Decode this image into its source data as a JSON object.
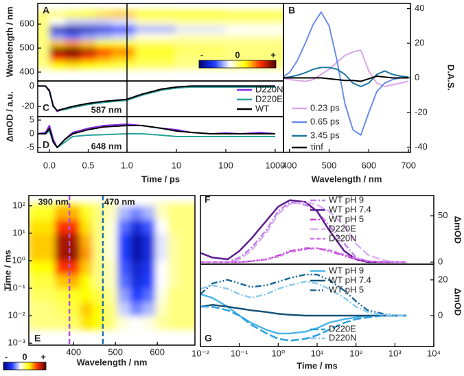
{
  "chart_data": [
    {
      "panel": "A",
      "type": "heatmap",
      "xscale": "split",
      "xsplit": 1,
      "xlim": [
        -0.15,
        1470
      ],
      "ylim": [
        363,
        686
      ],
      "yticks": [
        400,
        500,
        600
      ],
      "ylabel": "Wavelength / nm",
      "x": [
        -0.1,
        0.1,
        0.3,
        0.5,
        0.7,
        0.9,
        3,
        30,
        300,
        1000
      ],
      "y": [
        400,
        430,
        460,
        490,
        520,
        550,
        580,
        610,
        640,
        670
      ],
      "z": [
        [
          0,
          0.05,
          0.05,
          0.05,
          0.05,
          0.03,
          0,
          0,
          0,
          0
        ],
        [
          0,
          0.2,
          0.25,
          0.2,
          0.15,
          0.1,
          0.05,
          0,
          0,
          0
        ],
        [
          0,
          0.6,
          0.7,
          0.55,
          0.4,
          0.3,
          0.1,
          0,
          0,
          0
        ],
        [
          0,
          0.9,
          1,
          0.8,
          0.6,
          0.45,
          0.15,
          0.05,
          0,
          0
        ],
        [
          0,
          0.3,
          0.4,
          0.3,
          0.2,
          0.15,
          0.05,
          0,
          0,
          0
        ],
        [
          0,
          -0.4,
          -0.5,
          -0.4,
          -0.35,
          -0.3,
          -0.15,
          -0.1,
          -0.1,
          -0.1
        ],
        [
          0,
          -0.8,
          -0.9,
          -0.8,
          -0.7,
          -0.6,
          -0.35,
          -0.25,
          -0.2,
          -0.2
        ],
        [
          0,
          -0.2,
          -0.3,
          -0.3,
          -0.3,
          -0.25,
          -0.1,
          -0.05,
          -0.05,
          -0.05
        ],
        [
          0,
          0.1,
          0.2,
          0.3,
          0.35,
          0.35,
          0.25,
          0.2,
          0.15,
          0.15
        ],
        [
          0,
          0,
          0.1,
          0.2,
          0.25,
          0.3,
          0.2,
          0.15,
          0.1,
          0.1
        ]
      ],
      "zlim": [
        -1,
        1
      ],
      "colormap": [
        "#000078",
        "#1e3cff",
        "#ffffff",
        "#ffff00",
        "#ff3000",
        "#500000"
      ],
      "colorbar_labels": [
        "-",
        "0",
        "+"
      ]
    },
    {
      "panel": "B",
      "type": "line",
      "xlim": [
        385,
        705
      ],
      "ylim": [
        -43,
        43
      ],
      "xticks": [
        400,
        500,
        600,
        700
      ],
      "yticks": [
        -40,
        -20,
        0,
        20,
        40
      ],
      "xlabel": "Wavelength / nm",
      "ylabel": "D.A.S.",
      "y_side": "right",
      "legend": "lower left",
      "x": [
        380,
        400,
        420,
        440,
        460,
        480,
        500,
        520,
        540,
        560,
        580,
        600,
        620,
        640,
        660,
        680,
        700
      ],
      "series": [
        {
          "name": "0.23 ps",
          "color": "#d9a6ea",
          "style": "solid",
          "values": [
            0,
            -1,
            -1.5,
            -2,
            -1,
            2,
            5,
            9,
            13,
            15,
            16,
            4,
            -3,
            -5,
            -4,
            -3,
            -2
          ]
        },
        {
          "name": "0.65 ps",
          "color": "#6a8cea",
          "style": "solid",
          "values": [
            0,
            3,
            10,
            20,
            31,
            38,
            30,
            10,
            -15,
            -30,
            -33,
            -20,
            -8,
            -3,
            -1,
            0,
            0
          ]
        },
        {
          "name": "3.45 ps",
          "color": "#1b75a0",
          "style": "solid",
          "values": [
            0,
            0.5,
            1.5,
            3,
            5,
            6,
            6,
            5,
            2,
            -3,
            -5,
            -3,
            2,
            4,
            2,
            1,
            0.5
          ]
        },
        {
          "name": "τinf",
          "color": "#000000",
          "style": "solid",
          "values": [
            0,
            0,
            0,
            0,
            0,
            0,
            -0.5,
            -1,
            -1.5,
            -1.5,
            -2,
            -0.5,
            1,
            0.5,
            0,
            0,
            0
          ]
        }
      ]
    },
    {
      "panel": "C",
      "type": "line",
      "xscale": "split",
      "xsplit": 1,
      "xlim": [
        -0.15,
        1470
      ],
      "ylim": [
        -30,
        5
      ],
      "yticks": [
        -20,
        0
      ],
      "legend": "right",
      "annotation": "587 nm",
      "x": [
        -0.15,
        -0.05,
        0,
        0.05,
        0.1,
        0.2,
        0.3,
        0.5,
        0.7,
        1,
        2,
        5,
        10,
        20,
        50,
        100,
        200,
        500,
        1000
      ],
      "series": [
        {
          "name": "D220N",
          "color": "#8a2be2",
          "style": "solid",
          "values": [
            0,
            0,
            -4,
            -19,
            -25,
            -22,
            -20,
            -17,
            -15,
            -13,
            -8,
            -3,
            -1,
            0,
            0,
            0,
            0,
            0,
            0
          ]
        },
        {
          "name": "D220E",
          "color": "#2aa198",
          "style": "solid",
          "values": [
            0,
            0,
            -5,
            -20,
            -24,
            -23,
            -21,
            -18,
            -16,
            -14,
            -9,
            -4,
            -2,
            -1,
            -1,
            -1,
            -1,
            -1,
            -1
          ]
        },
        {
          "name": "WT",
          "color": "#000000",
          "style": "solid",
          "values": [
            0,
            0,
            -5,
            -20,
            -24,
            -22,
            -20,
            -17,
            -15,
            -13,
            -8,
            -3,
            -1,
            0,
            0,
            0,
            0,
            0,
            0
          ]
        }
      ]
    },
    {
      "panel": "D",
      "type": "line",
      "xscale": "split",
      "xsplit": 1,
      "xlim": [
        -0.15,
        1470
      ],
      "ylim": [
        -6.75,
        6.25
      ],
      "yticks": [
        -5,
        0,
        5
      ],
      "annotation": "648 nm",
      "xticks": [
        {
          "value": 0,
          "label": "0.0"
        },
        {
          "value": 0.5,
          "label": "0.5"
        },
        {
          "value": 1,
          "label": "1.0"
        },
        10,
        100,
        1000
      ],
      "xlabel": "Time / ps",
      "ylabel": "ΔmOD / a.u.",
      "x": [
        -0.15,
        -0.05,
        0,
        0.05,
        0.1,
        0.2,
        0.3,
        0.5,
        0.7,
        1,
        2,
        5,
        10,
        20,
        50,
        100,
        200,
        500,
        1000
      ],
      "series": [
        {
          "color": "#8a2be2",
          "style": "solid",
          "values": [
            0,
            0.5,
            3,
            -2,
            -5,
            -2,
            0.5,
            2,
            3,
            3.5,
            3,
            2,
            1.5,
            0.5,
            0,
            0.3,
            0,
            0.5,
            0
          ]
        },
        {
          "color": "#2aa198",
          "style": "solid",
          "values": [
            0,
            0,
            1,
            -3,
            -5,
            -3,
            -1,
            -0.5,
            -0.3,
            0,
            0,
            -0.5,
            -1,
            -1,
            -1,
            -1,
            -1,
            -1,
            -1
          ]
        },
        {
          "color": "#000000",
          "style": "solid",
          "values": [
            0,
            0,
            2,
            -3,
            -5,
            -2,
            0,
            1.5,
            2.5,
            3,
            3,
            2,
            1,
            0.5,
            0,
            0,
            0,
            0,
            0
          ]
        }
      ]
    },
    {
      "panel": "E",
      "type": "heatmap",
      "yscale": "log",
      "xlim": [
        293,
        690
      ],
      "ylim": [
        0.00085,
        235
      ],
      "xticks": [
        400,
        500,
        600
      ],
      "yticks": [
        {
          "value": 0.001,
          "label": "10⁻³"
        },
        {
          "value": 0.01,
          "label": "10⁻²"
        },
        {
          "value": 0.1,
          "label": "10⁻¹"
        },
        {
          "value": 1,
          "label": "10⁰"
        },
        {
          "value": 10,
          "label": "10¹"
        },
        {
          "value": 100,
          "label": "10²"
        }
      ],
      "xlabel": "Wavelength / nm",
      "ylabel": "Time / ms",
      "markers": [
        {
          "value": 390,
          "label": "390 nm",
          "color": "#b050e0"
        },
        {
          "value": 470,
          "label": "470 nm",
          "color": "#1a70b0"
        }
      ],
      "x": [
        340,
        370,
        400,
        430,
        460,
        490,
        520,
        550,
        580,
        610,
        640,
        670
      ],
      "y": [
        0.002,
        0.005,
        0.02,
        0.05,
        0.2,
        0.5,
        2,
        5,
        20,
        50,
        200
      ],
      "z": [
        [
          0,
          0,
          0,
          0.05,
          0.05,
          0,
          -0.1,
          -0.1,
          -0.1,
          0,
          0,
          0
        ],
        [
          0,
          0,
          0.05,
          0.25,
          0.2,
          0,
          -0.15,
          -0.2,
          -0.15,
          -0.05,
          0,
          0
        ],
        [
          0,
          0.05,
          0.1,
          0.3,
          0.2,
          0,
          -0.3,
          -0.45,
          -0.35,
          -0.1,
          0,
          0
        ],
        [
          0.05,
          0.1,
          0.15,
          0.2,
          0.1,
          -0.05,
          -0.4,
          -0.6,
          -0.5,
          -0.15,
          0,
          0
        ],
        [
          0.1,
          0.3,
          0.35,
          0.2,
          0,
          -0.1,
          -0.5,
          -0.7,
          -0.6,
          -0.2,
          -0.05,
          0
        ],
        [
          0.2,
          0.6,
          0.6,
          0.3,
          0,
          -0.1,
          -0.55,
          -0.75,
          -0.65,
          -0.2,
          -0.05,
          0
        ],
        [
          0.3,
          0.8,
          0.85,
          0.4,
          0,
          -0.15,
          -0.6,
          -0.85,
          -0.7,
          -0.25,
          -0.05,
          0
        ],
        [
          0.3,
          0.8,
          0.8,
          0.35,
          0,
          -0.15,
          -0.6,
          -0.85,
          -0.7,
          -0.25,
          -0.05,
          0
        ],
        [
          0.25,
          0.6,
          0.6,
          0.25,
          0,
          -0.15,
          -0.5,
          -0.7,
          -0.55,
          -0.2,
          0,
          0
        ],
        [
          0.15,
          0.35,
          0.35,
          0.15,
          0,
          -0.1,
          -0.35,
          -0.45,
          -0.35,
          -0.1,
          0,
          0
        ],
        [
          0.05,
          0.15,
          0.15,
          0.05,
          0,
          -0.05,
          -0.15,
          -0.2,
          -0.15,
          -0.05,
          0,
          0
        ]
      ],
      "zlim": [
        -1,
        1
      ],
      "colormap": [
        "#000078",
        "#1e3cff",
        "#ffffff",
        "#ffff00",
        "#ff3000",
        "#500000"
      ],
      "colorbar_labels": [
        "-",
        "0",
        "+"
      ]
    },
    {
      "panel": "F",
      "type": "line",
      "xscale": "log",
      "xlim": [
        0.01,
        10000
      ],
      "ylim": [
        -2.2,
        72
      ],
      "yticks": [
        0,
        50
      ],
      "ylabel": "ΔmOD",
      "y_side": "right",
      "legend": "right",
      "x": [
        0.01,
        0.02,
        0.05,
        0.1,
        0.2,
        0.5,
        1,
        2,
        5,
        10,
        20,
        50,
        100,
        200,
        500,
        1000,
        2000
      ],
      "series": [
        {
          "name": "WT pH 9",
          "color": "#c080ec",
          "style": "dashdot",
          "values": [
            0,
            0,
            0,
            5,
            15,
            35,
            55,
            65,
            62,
            55,
            40,
            20,
            5,
            1,
            0,
            0,
            0
          ]
        },
        {
          "name": "WT pH 7.4",
          "color": "#5b1c8f",
          "style": "solid",
          "values": [
            10,
            5,
            3,
            12,
            25,
            45,
            60,
            67,
            65,
            55,
            35,
            12,
            3,
            0,
            0,
            0,
            0
          ]
        },
        {
          "name": "WT pH 5",
          "color": "#c23fd0",
          "style": "dashdotdot",
          "values": [
            0,
            0,
            0,
            0,
            1,
            3,
            7,
            12,
            15,
            15,
            12,
            7,
            3,
            1,
            0,
            0,
            0
          ]
        },
        {
          "name": "D220E",
          "color": "#dcb0f2",
          "style": "longdash",
          "values": [
            0,
            0,
            0,
            3,
            12,
            32,
            52,
            63,
            65,
            62,
            55,
            40,
            20,
            8,
            2,
            0,
            0
          ]
        },
        {
          "name": "D220N",
          "color": "#d070e8",
          "style": "dash",
          "values": [
            0,
            0,
            0,
            0,
            1,
            3,
            6,
            11,
            14,
            15,
            13,
            8,
            4,
            1,
            0,
            0,
            0
          ]
        }
      ]
    },
    {
      "panel": "G",
      "type": "line",
      "xscale": "log",
      "xlim": [
        0.01,
        10000
      ],
      "ylim": [
        -17.3,
        28.8
      ],
      "yticks": [
        0,
        20
      ],
      "xticks": [
        {
          "value": 0.01,
          "label": "10⁻²"
        },
        {
          "value": 0.1,
          "label": "10⁻¹"
        },
        {
          "value": 1,
          "label": "10⁰"
        },
        {
          "value": 10,
          "label": "10¹"
        },
        {
          "value": 100,
          "label": "10²"
        },
        {
          "value": 1000,
          "label": "10³"
        },
        {
          "value": 10000,
          "label": "10⁴"
        }
      ],
      "xlabel": "Time / ms",
      "ylabel": "ΔmOD",
      "y_side": "right",
      "legend": "right",
      "x": [
        0.01,
        0.02,
        0.05,
        0.1,
        0.2,
        0.5,
        1,
        2,
        5,
        10,
        20,
        50,
        100,
        200,
        500,
        1000,
        2000
      ],
      "series": [
        {
          "name": "WT pH 9",
          "color": "#4fb4ea",
          "style": "solid",
          "values": [
            12,
            10,
            5,
            0,
            -4,
            -8,
            -10,
            -10,
            -9,
            -7,
            -4,
            -2,
            -1,
            0,
            0,
            0,
            0
          ]
        },
        {
          "name": "WT pH 7.4",
          "color": "#175377",
          "style": "solid",
          "values": [
            5,
            6,
            5,
            4,
            3,
            2,
            1,
            0.5,
            0,
            0,
            0,
            0,
            0,
            0,
            0,
            0,
            0
          ]
        },
        {
          "name": "WT pH 5",
          "color": "#1d6a9a",
          "style": "dashdotdot",
          "values": [
            12,
            18,
            20,
            18,
            16,
            17,
            19,
            21,
            23,
            23,
            20,
            14,
            8,
            3,
            1,
            0,
            0
          ]
        },
        {
          "name": "D220E",
          "color": "#2aa0e0",
          "style": "longdash",
          "values": [
            5,
            5,
            3,
            0,
            -5,
            -10,
            -13,
            -14,
            -13,
            -11,
            -8,
            -4,
            -2,
            -1,
            0,
            0,
            0
          ]
        },
        {
          "name": "D220N",
          "color": "#8ccbf0",
          "style": "dashdot",
          "values": [
            15,
            17,
            15,
            12,
            10,
            12,
            15,
            17,
            19,
            18,
            15,
            10,
            5,
            2,
            0.5,
            0,
            0
          ]
        }
      ]
    }
  ]
}
